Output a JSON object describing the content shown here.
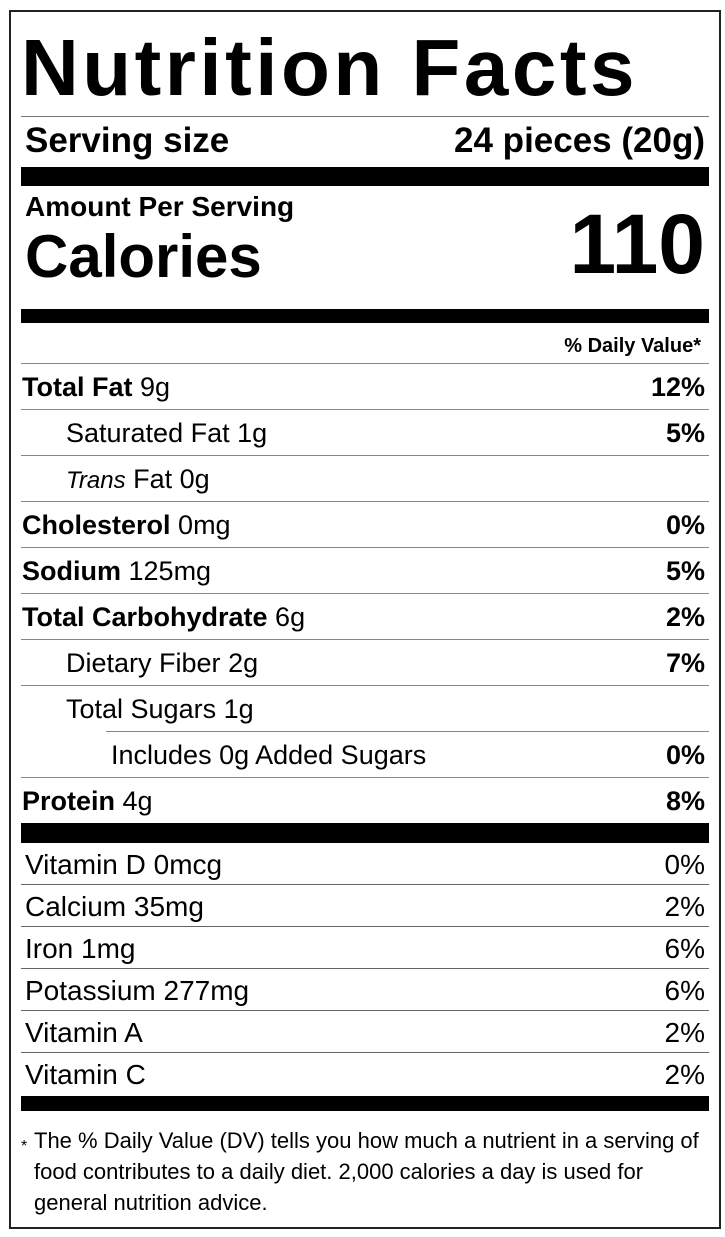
{
  "title": "Nutrition Facts",
  "serving": {
    "label": "Serving size",
    "value": "24 pieces (20g)"
  },
  "amount_per_serving": "Amount Per Serving",
  "calories": {
    "label": "Calories",
    "value": "110"
  },
  "daily_value_header": "% Daily Value*",
  "nutrients": [
    {
      "name": "Total Fat",
      "amount": "9g",
      "dv": "12%",
      "bold": true,
      "indent": 0
    },
    {
      "name": "Saturated Fat",
      "amount": "1g",
      "dv": "5%",
      "bold": false,
      "indent": 1
    },
    {
      "name": "Trans",
      "name_suffix": "Fat",
      "amount": "0g",
      "dv": "",
      "bold": false,
      "indent": 1
    },
    {
      "name": "Cholesterol",
      "amount": "0mg",
      "dv": "0%",
      "bold": true,
      "indent": 0
    },
    {
      "name": "Sodium",
      "amount": "125mg",
      "dv": "5%",
      "bold": true,
      "indent": 0
    },
    {
      "name": "Total Carbohydrate",
      "amount": "6g",
      "dv": "2%",
      "bold": true,
      "indent": 0
    },
    {
      "name": "Dietary Fiber",
      "amount": "2g",
      "dv": "7%",
      "bold": false,
      "indent": 1
    },
    {
      "name": "Total Sugars",
      "amount": "1g",
      "dv": "",
      "bold": false,
      "indent": 1
    },
    {
      "name": "Includes 0g Added Sugars",
      "amount": "",
      "dv": "0%",
      "bold": false,
      "indent": 2
    },
    {
      "name": "Protein",
      "amount": "4g",
      "dv": "8%",
      "bold": true,
      "indent": 0
    }
  ],
  "vitamins": [
    {
      "name": "Vitamin D 0mcg",
      "dv": "0%"
    },
    {
      "name": "Calcium 35mg",
      "dv": "2%"
    },
    {
      "name": "Iron 1mg",
      "dv": "6%"
    },
    {
      "name": "Potassium 277mg",
      "dv": "6%"
    },
    {
      "name": "Vitamin A",
      "dv": "2%"
    },
    {
      "name": "Vitamin C",
      "dv": "2%"
    }
  ],
  "footnote": {
    "marker": "*",
    "text": "The % Daily Value (DV) tells you how much a nutrient in a serving of food contributes to a daily diet. 2,000 calories a day is used for general nutrition advice."
  }
}
